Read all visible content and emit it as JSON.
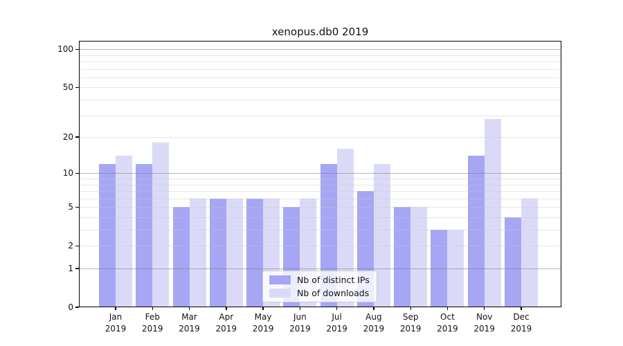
{
  "title": "xenopus.db0 2019",
  "colors": {
    "background": "#ffffff",
    "spine": "#000000",
    "bar_distinct_ips": "#a6a6f4",
    "bar_downloads": "#dadaf8",
    "grid_major": "#a8a8a8",
    "grid_minor": "#e9e9e9",
    "legend_border": "#cccccc",
    "text": "#111111"
  },
  "chart_data": {
    "type": "bar",
    "title": "xenopus.db0 2019",
    "categories": [
      "Jan",
      "Feb",
      "Mar",
      "Apr",
      "May",
      "Jun",
      "Jul",
      "Aug",
      "Sep",
      "Oct",
      "Nov",
      "Dec"
    ],
    "x_tick_year": "2019",
    "series": [
      {
        "name": "Nb of distinct IPs",
        "color": "#a6a6f4",
        "values": [
          12,
          12,
          5,
          6,
          6,
          5,
          12,
          7,
          5,
          3,
          14,
          4
        ]
      },
      {
        "name": "Nb of downloads",
        "color": "#dadaf8",
        "values": [
          14,
          18,
          6,
          6,
          6,
          6,
          16,
          12,
          5,
          3,
          28,
          6
        ]
      }
    ],
    "y_scale": "log1p",
    "ylim": [
      0,
      116.5
    ],
    "y_tick_labels": [
      0,
      1,
      2,
      5,
      10,
      20,
      50,
      100
    ],
    "y_gridlines_major": [
      1,
      10,
      100
    ],
    "y_gridlines_minor": [
      2,
      3,
      4,
      5,
      6,
      7,
      8,
      9,
      20,
      30,
      40,
      50,
      60,
      70,
      80,
      90
    ],
    "grid": true,
    "legend_position": "lower center",
    "xlabel": "",
    "ylabel": ""
  }
}
